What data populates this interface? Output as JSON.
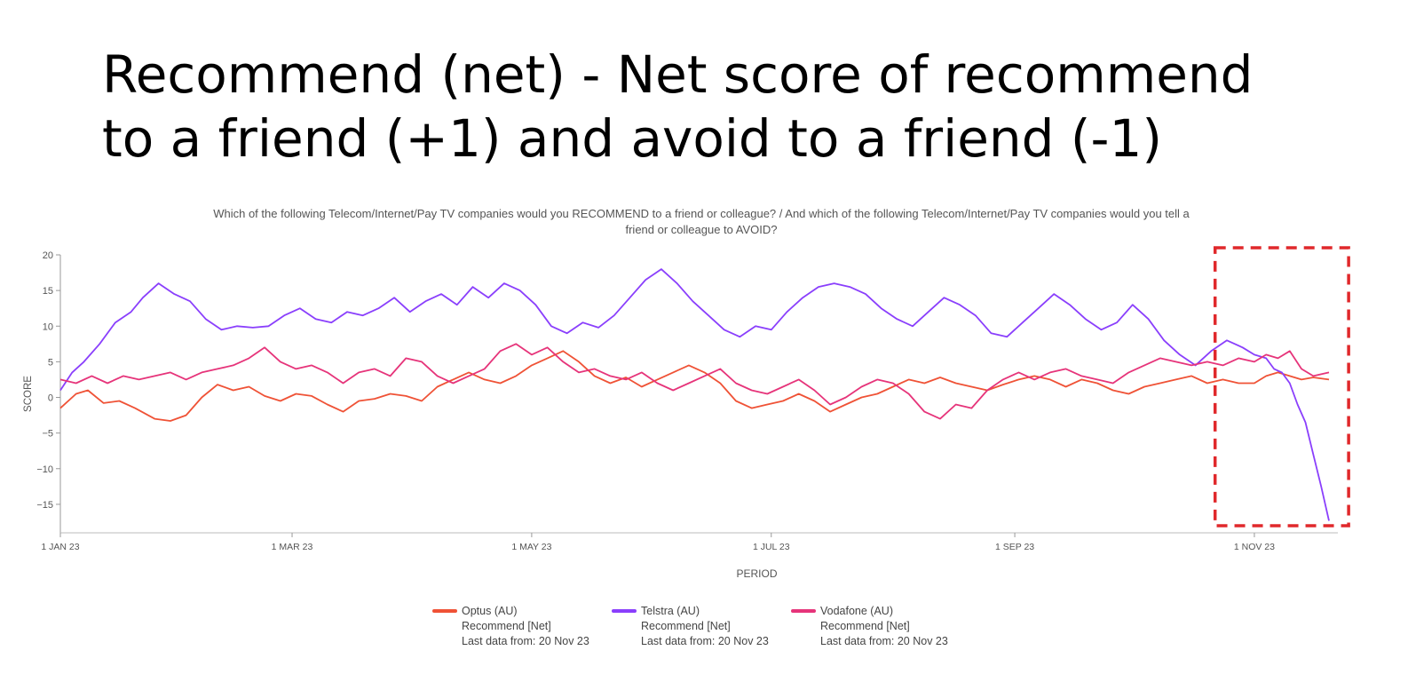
{
  "slide": {
    "title_line1": "Recommend (net) - Net score of recommend",
    "title_line2": "to a friend (+1) and avoid to a friend (-1)"
  },
  "chart_data": {
    "type": "line",
    "subtitle_line1": "Which of the following Telecom/Internet/Pay TV companies would you RECOMMEND to a friend or colleague? / And which of the following Telecom/Internet/Pay TV companies would you tell a",
    "subtitle_line2": "friend or colleague to AVOID?",
    "xlabel": "PERIOD",
    "ylabel": "SCORE",
    "ylim": [
      -19,
      20
    ],
    "yticks": [
      20,
      15,
      10,
      5,
      0,
      -5,
      -10,
      -15
    ],
    "x_range": [
      "2023-01-01",
      "2023-11-20"
    ],
    "xticks": [
      {
        "date": "2023-01-01",
        "label": "1 JAN 23"
      },
      {
        "date": "2023-03-01",
        "label": "1 MAR 23"
      },
      {
        "date": "2023-05-01",
        "label": "1 MAY 23"
      },
      {
        "date": "2023-07-01",
        "label": "1 JUL 23"
      },
      {
        "date": "2023-09-01",
        "label": "1 SEP 23"
      },
      {
        "date": "2023-11-01",
        "label": "1 NOV 23"
      }
    ],
    "grid": false,
    "legend_position": "bottom",
    "annotation": {
      "type": "dashed-rectangle",
      "color": "#e0282b",
      "x_from": "2023-10-22",
      "x_to": "2023-11-25",
      "y_from": -18,
      "y_to": 21
    },
    "series": [
      {
        "name": "Optus (AU)",
        "detail1": "Recommend [Net]",
        "detail2": "Last data from: 20 Nov 23",
        "color": "#ef5236",
        "points": [
          [
            "2023-01-01",
            -1.5
          ],
          [
            "2023-01-05",
            0.5
          ],
          [
            "2023-01-08",
            1.0
          ],
          [
            "2023-01-12",
            -0.8
          ],
          [
            "2023-01-16",
            -0.5
          ],
          [
            "2023-01-20",
            -1.5
          ],
          [
            "2023-01-25",
            -3.0
          ],
          [
            "2023-01-29",
            -3.3
          ],
          [
            "2023-02-02",
            -2.5
          ],
          [
            "2023-02-06",
            0.0
          ],
          [
            "2023-02-10",
            1.8
          ],
          [
            "2023-02-14",
            1.0
          ],
          [
            "2023-02-18",
            1.5
          ],
          [
            "2023-02-22",
            0.2
          ],
          [
            "2023-02-26",
            -0.5
          ],
          [
            "2023-03-02",
            0.5
          ],
          [
            "2023-03-06",
            0.2
          ],
          [
            "2023-03-10",
            -1.0
          ],
          [
            "2023-03-14",
            -2.0
          ],
          [
            "2023-03-18",
            -0.5
          ],
          [
            "2023-03-22",
            -0.2
          ],
          [
            "2023-03-26",
            0.5
          ],
          [
            "2023-03-30",
            0.2
          ],
          [
            "2023-04-03",
            -0.5
          ],
          [
            "2023-04-07",
            1.5
          ],
          [
            "2023-04-11",
            2.5
          ],
          [
            "2023-04-15",
            3.5
          ],
          [
            "2023-04-19",
            2.5
          ],
          [
            "2023-04-23",
            2.0
          ],
          [
            "2023-04-27",
            3.0
          ],
          [
            "2023-05-01",
            4.5
          ],
          [
            "2023-05-05",
            5.5
          ],
          [
            "2023-05-09",
            6.5
          ],
          [
            "2023-05-13",
            5.0
          ],
          [
            "2023-05-17",
            3.0
          ],
          [
            "2023-05-21",
            2.0
          ],
          [
            "2023-05-25",
            2.8
          ],
          [
            "2023-05-29",
            1.5
          ],
          [
            "2023-06-02",
            2.5
          ],
          [
            "2023-06-06",
            3.5
          ],
          [
            "2023-06-10",
            4.5
          ],
          [
            "2023-06-14",
            3.5
          ],
          [
            "2023-06-18",
            2.0
          ],
          [
            "2023-06-22",
            -0.5
          ],
          [
            "2023-06-26",
            -1.5
          ],
          [
            "2023-06-30",
            -1.0
          ],
          [
            "2023-07-04",
            -0.5
          ],
          [
            "2023-07-08",
            0.5
          ],
          [
            "2023-07-12",
            -0.5
          ],
          [
            "2023-07-16",
            -2.0
          ],
          [
            "2023-07-20",
            -1.0
          ],
          [
            "2023-07-24",
            0.0
          ],
          [
            "2023-07-28",
            0.5
          ],
          [
            "2023-08-01",
            1.5
          ],
          [
            "2023-08-05",
            2.5
          ],
          [
            "2023-08-09",
            2.0
          ],
          [
            "2023-08-13",
            2.8
          ],
          [
            "2023-08-17",
            2.0
          ],
          [
            "2023-08-21",
            1.5
          ],
          [
            "2023-08-25",
            1.0
          ],
          [
            "2023-08-29",
            1.8
          ],
          [
            "2023-09-02",
            2.5
          ],
          [
            "2023-09-06",
            3.0
          ],
          [
            "2023-09-10",
            2.5
          ],
          [
            "2023-09-14",
            1.5
          ],
          [
            "2023-09-18",
            2.5
          ],
          [
            "2023-09-22",
            2.0
          ],
          [
            "2023-09-26",
            1.0
          ],
          [
            "2023-09-30",
            0.5
          ],
          [
            "2023-10-04",
            1.5
          ],
          [
            "2023-10-08",
            2.0
          ],
          [
            "2023-10-12",
            2.5
          ],
          [
            "2023-10-16",
            3.0
          ],
          [
            "2023-10-20",
            2.0
          ],
          [
            "2023-10-24",
            2.5
          ],
          [
            "2023-10-28",
            2.0
          ],
          [
            "2023-11-01",
            2.0
          ],
          [
            "2023-11-04",
            3.0
          ],
          [
            "2023-11-07",
            3.5
          ],
          [
            "2023-11-10",
            3.0
          ],
          [
            "2023-11-13",
            2.5
          ],
          [
            "2023-11-16",
            2.8
          ],
          [
            "2023-11-20",
            2.5
          ]
        ]
      },
      {
        "name": "Telstra (AU)",
        "detail1": "Recommend [Net]",
        "detail2": "Last data from: 20 Nov 23",
        "color": "#8a3ffc",
        "points": [
          [
            "2023-01-01",
            1.0
          ],
          [
            "2023-01-04",
            3.5
          ],
          [
            "2023-01-07",
            5.0
          ],
          [
            "2023-01-11",
            7.5
          ],
          [
            "2023-01-15",
            10.5
          ],
          [
            "2023-01-19",
            12.0
          ],
          [
            "2023-01-22",
            14.0
          ],
          [
            "2023-01-26",
            16.0
          ],
          [
            "2023-01-30",
            14.5
          ],
          [
            "2023-02-03",
            13.5
          ],
          [
            "2023-02-07",
            11.0
          ],
          [
            "2023-02-11",
            9.5
          ],
          [
            "2023-02-15",
            10.0
          ],
          [
            "2023-02-19",
            9.8
          ],
          [
            "2023-02-23",
            10.0
          ],
          [
            "2023-02-27",
            11.5
          ],
          [
            "2023-03-03",
            12.5
          ],
          [
            "2023-03-07",
            11.0
          ],
          [
            "2023-03-11",
            10.5
          ],
          [
            "2023-03-15",
            12.0
          ],
          [
            "2023-03-19",
            11.5
          ],
          [
            "2023-03-23",
            12.5
          ],
          [
            "2023-03-27",
            14.0
          ],
          [
            "2023-03-31",
            12.0
          ],
          [
            "2023-04-04",
            13.5
          ],
          [
            "2023-04-08",
            14.5
          ],
          [
            "2023-04-12",
            13.0
          ],
          [
            "2023-04-16",
            15.5
          ],
          [
            "2023-04-20",
            14.0
          ],
          [
            "2023-04-24",
            16.0
          ],
          [
            "2023-04-28",
            15.0
          ],
          [
            "2023-05-02",
            13.0
          ],
          [
            "2023-05-06",
            10.0
          ],
          [
            "2023-05-10",
            9.0
          ],
          [
            "2023-05-14",
            10.5
          ],
          [
            "2023-05-18",
            9.8
          ],
          [
            "2023-05-22",
            11.5
          ],
          [
            "2023-05-26",
            14.0
          ],
          [
            "2023-05-30",
            16.5
          ],
          [
            "2023-06-03",
            18.0
          ],
          [
            "2023-06-07",
            16.0
          ],
          [
            "2023-06-11",
            13.5
          ],
          [
            "2023-06-15",
            11.5
          ],
          [
            "2023-06-19",
            9.5
          ],
          [
            "2023-06-23",
            8.5
          ],
          [
            "2023-06-27",
            10.0
          ],
          [
            "2023-07-01",
            9.5
          ],
          [
            "2023-07-05",
            12.0
          ],
          [
            "2023-07-09",
            14.0
          ],
          [
            "2023-07-13",
            15.5
          ],
          [
            "2023-07-17",
            16.0
          ],
          [
            "2023-07-21",
            15.5
          ],
          [
            "2023-07-25",
            14.5
          ],
          [
            "2023-07-29",
            12.5
          ],
          [
            "2023-08-02",
            11.0
          ],
          [
            "2023-08-06",
            10.0
          ],
          [
            "2023-08-10",
            12.0
          ],
          [
            "2023-08-14",
            14.0
          ],
          [
            "2023-08-18",
            13.0
          ],
          [
            "2023-08-22",
            11.5
          ],
          [
            "2023-08-26",
            9.0
          ],
          [
            "2023-08-30",
            8.5
          ],
          [
            "2023-09-03",
            10.5
          ],
          [
            "2023-09-07",
            12.5
          ],
          [
            "2023-09-11",
            14.5
          ],
          [
            "2023-09-15",
            13.0
          ],
          [
            "2023-09-19",
            11.0
          ],
          [
            "2023-09-23",
            9.5
          ],
          [
            "2023-09-27",
            10.5
          ],
          [
            "2023-10-01",
            13.0
          ],
          [
            "2023-10-05",
            11.0
          ],
          [
            "2023-10-09",
            8.0
          ],
          [
            "2023-10-13",
            6.0
          ],
          [
            "2023-10-17",
            4.5
          ],
          [
            "2023-10-21",
            6.5
          ],
          [
            "2023-10-25",
            8.0
          ],
          [
            "2023-10-29",
            7.0
          ],
          [
            "2023-11-01",
            6.0
          ],
          [
            "2023-11-04",
            5.5
          ],
          [
            "2023-11-06",
            4.0
          ],
          [
            "2023-11-08",
            3.5
          ],
          [
            "2023-11-10",
            2.0
          ],
          [
            "2023-11-12",
            -1.0
          ],
          [
            "2023-11-14",
            -3.5
          ],
          [
            "2023-11-16",
            -8.0
          ],
          [
            "2023-11-18",
            -12.5
          ],
          [
            "2023-11-20",
            -17.3
          ]
        ]
      },
      {
        "name": "Vodafone (AU)",
        "detail1": "Recommend [Net]",
        "detail2": "Last data from: 20 Nov 23",
        "color": "#e6347a",
        "points": [
          [
            "2023-01-01",
            2.5
          ],
          [
            "2023-01-05",
            2.0
          ],
          [
            "2023-01-09",
            3.0
          ],
          [
            "2023-01-13",
            2.0
          ],
          [
            "2023-01-17",
            3.0
          ],
          [
            "2023-01-21",
            2.5
          ],
          [
            "2023-01-25",
            3.0
          ],
          [
            "2023-01-29",
            3.5
          ],
          [
            "2023-02-02",
            2.5
          ],
          [
            "2023-02-06",
            3.5
          ],
          [
            "2023-02-10",
            4.0
          ],
          [
            "2023-02-14",
            4.5
          ],
          [
            "2023-02-18",
            5.5
          ],
          [
            "2023-02-22",
            7.0
          ],
          [
            "2023-02-26",
            5.0
          ],
          [
            "2023-03-02",
            4.0
          ],
          [
            "2023-03-06",
            4.5
          ],
          [
            "2023-03-10",
            3.5
          ],
          [
            "2023-03-14",
            2.0
          ],
          [
            "2023-03-18",
            3.5
          ],
          [
            "2023-03-22",
            4.0
          ],
          [
            "2023-03-26",
            3.0
          ],
          [
            "2023-03-30",
            5.5
          ],
          [
            "2023-04-03",
            5.0
          ],
          [
            "2023-04-07",
            3.0
          ],
          [
            "2023-04-11",
            2.0
          ],
          [
            "2023-04-15",
            3.0
          ],
          [
            "2023-04-19",
            4.0
          ],
          [
            "2023-04-23",
            6.5
          ],
          [
            "2023-04-27",
            7.5
          ],
          [
            "2023-05-01",
            6.0
          ],
          [
            "2023-05-05",
            7.0
          ],
          [
            "2023-05-09",
            5.0
          ],
          [
            "2023-05-13",
            3.5
          ],
          [
            "2023-05-17",
            4.0
          ],
          [
            "2023-05-21",
            3.0
          ],
          [
            "2023-05-25",
            2.5
          ],
          [
            "2023-05-29",
            3.5
          ],
          [
            "2023-06-02",
            2.0
          ],
          [
            "2023-06-06",
            1.0
          ],
          [
            "2023-06-10",
            2.0
          ],
          [
            "2023-06-14",
            3.0
          ],
          [
            "2023-06-18",
            4.0
          ],
          [
            "2023-06-22",
            2.0
          ],
          [
            "2023-06-26",
            1.0
          ],
          [
            "2023-06-30",
            0.5
          ],
          [
            "2023-07-04",
            1.5
          ],
          [
            "2023-07-08",
            2.5
          ],
          [
            "2023-07-12",
            1.0
          ],
          [
            "2023-07-16",
            -1.0
          ],
          [
            "2023-07-20",
            0.0
          ],
          [
            "2023-07-24",
            1.5
          ],
          [
            "2023-07-28",
            2.5
          ],
          [
            "2023-08-01",
            2.0
          ],
          [
            "2023-08-05",
            0.5
          ],
          [
            "2023-08-09",
            -2.0
          ],
          [
            "2023-08-13",
            -3.0
          ],
          [
            "2023-08-17",
            -1.0
          ],
          [
            "2023-08-21",
            -1.5
          ],
          [
            "2023-08-25",
            1.0
          ],
          [
            "2023-08-29",
            2.5
          ],
          [
            "2023-09-02",
            3.5
          ],
          [
            "2023-09-06",
            2.5
          ],
          [
            "2023-09-10",
            3.5
          ],
          [
            "2023-09-14",
            4.0
          ],
          [
            "2023-09-18",
            3.0
          ],
          [
            "2023-09-22",
            2.5
          ],
          [
            "2023-09-26",
            2.0
          ],
          [
            "2023-09-30",
            3.5
          ],
          [
            "2023-10-04",
            4.5
          ],
          [
            "2023-10-08",
            5.5
          ],
          [
            "2023-10-12",
            5.0
          ],
          [
            "2023-10-16",
            4.5
          ],
          [
            "2023-10-20",
            5.0
          ],
          [
            "2023-10-24",
            4.5
          ],
          [
            "2023-10-28",
            5.5
          ],
          [
            "2023-11-01",
            5.0
          ],
          [
            "2023-11-04",
            6.0
          ],
          [
            "2023-11-07",
            5.5
          ],
          [
            "2023-11-10",
            6.5
          ],
          [
            "2023-11-13",
            4.0
          ],
          [
            "2023-11-16",
            3.0
          ],
          [
            "2023-11-20",
            3.5
          ]
        ]
      }
    ]
  }
}
